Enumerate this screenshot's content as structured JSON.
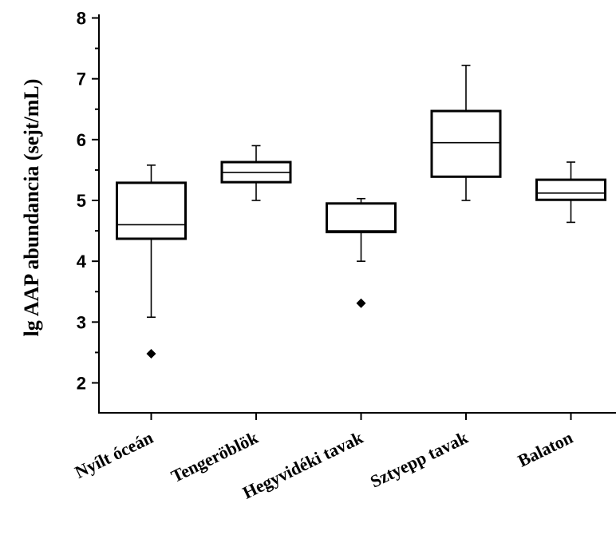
{
  "chart_data": {
    "type": "box",
    "ylabel": "lg AAP abundancia (sejt/mL)",
    "xlabel": "",
    "ylim": [
      1.5,
      8
    ],
    "yticks": [
      2,
      3,
      4,
      5,
      6,
      7,
      8
    ],
    "categories": [
      "Nyílt óceán",
      "Tengeröblök",
      "Hegyvidéki tavak",
      "Sztyepp tavak",
      "Balaton"
    ],
    "boxes": [
      {
        "category": "Nyílt óceán",
        "whisker_low": 3.08,
        "q1": 4.37,
        "median": 4.6,
        "q3": 5.29,
        "whisker_high": 5.58,
        "outliers": [
          2.48
        ]
      },
      {
        "category": "Tengeröblök",
        "whisker_low": 5.0,
        "q1": 5.3,
        "median": 5.46,
        "q3": 5.63,
        "whisker_high": 5.9,
        "outliers": []
      },
      {
        "category": "Hegyvidéki tavak",
        "whisker_low": 4.0,
        "q1": 4.48,
        "median": 4.5,
        "q3": 4.95,
        "whisker_high": 5.03,
        "outliers": [
          3.31
        ]
      },
      {
        "category": "Sztyepp tavak",
        "whisker_low": 5.0,
        "q1": 5.39,
        "median": 5.95,
        "q3": 6.47,
        "whisker_high": 7.22,
        "outliers": []
      },
      {
        "category": "Balaton",
        "whisker_low": 4.64,
        "q1": 5.01,
        "median": 5.12,
        "q3": 5.34,
        "whisker_high": 5.63,
        "outliers": []
      }
    ],
    "grid": false,
    "legend": "none"
  }
}
